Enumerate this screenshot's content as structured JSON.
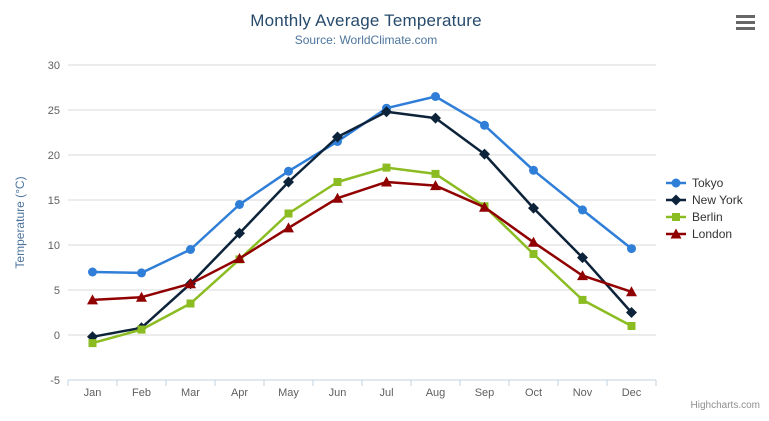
{
  "credits": "Highcharts.com",
  "toolbar": {
    "context_menu_icon": "hamburger-icon"
  },
  "chart_data": {
    "type": "line",
    "title": "Monthly Average Temperature",
    "subtitle": "Source: WorldClimate.com",
    "categories": [
      "Jan",
      "Feb",
      "Mar",
      "Apr",
      "May",
      "Jun",
      "Jul",
      "Aug",
      "Sep",
      "Oct",
      "Nov",
      "Dec"
    ],
    "xlabel": "",
    "ylabel": "Temperature (°C)",
    "ylim": [
      -5,
      30
    ],
    "ytick_interval": 5,
    "grid": true,
    "legend_position": "right",
    "series": [
      {
        "name": "Tokyo",
        "color": "#2f7ed8",
        "marker": "circle",
        "values": [
          7.0,
          6.9,
          9.5,
          14.5,
          18.2,
          21.5,
          25.2,
          26.5,
          23.3,
          18.3,
          13.9,
          9.6
        ]
      },
      {
        "name": "New York",
        "color": "#0d233a",
        "marker": "diamond",
        "values": [
          -0.2,
          0.8,
          5.7,
          11.3,
          17.0,
          22.0,
          24.8,
          24.1,
          20.1,
          14.1,
          8.6,
          2.5
        ]
      },
      {
        "name": "Berlin",
        "color": "#8bbc21",
        "marker": "square",
        "values": [
          -0.9,
          0.6,
          3.5,
          8.4,
          13.5,
          17.0,
          18.6,
          17.9,
          14.3,
          9.0,
          3.9,
          1.0
        ]
      },
      {
        "name": "London",
        "color": "#910000",
        "marker": "triangle",
        "values": [
          3.9,
          4.2,
          5.7,
          8.5,
          11.9,
          15.2,
          17.0,
          16.6,
          14.2,
          10.3,
          6.6,
          4.8
        ]
      }
    ]
  }
}
